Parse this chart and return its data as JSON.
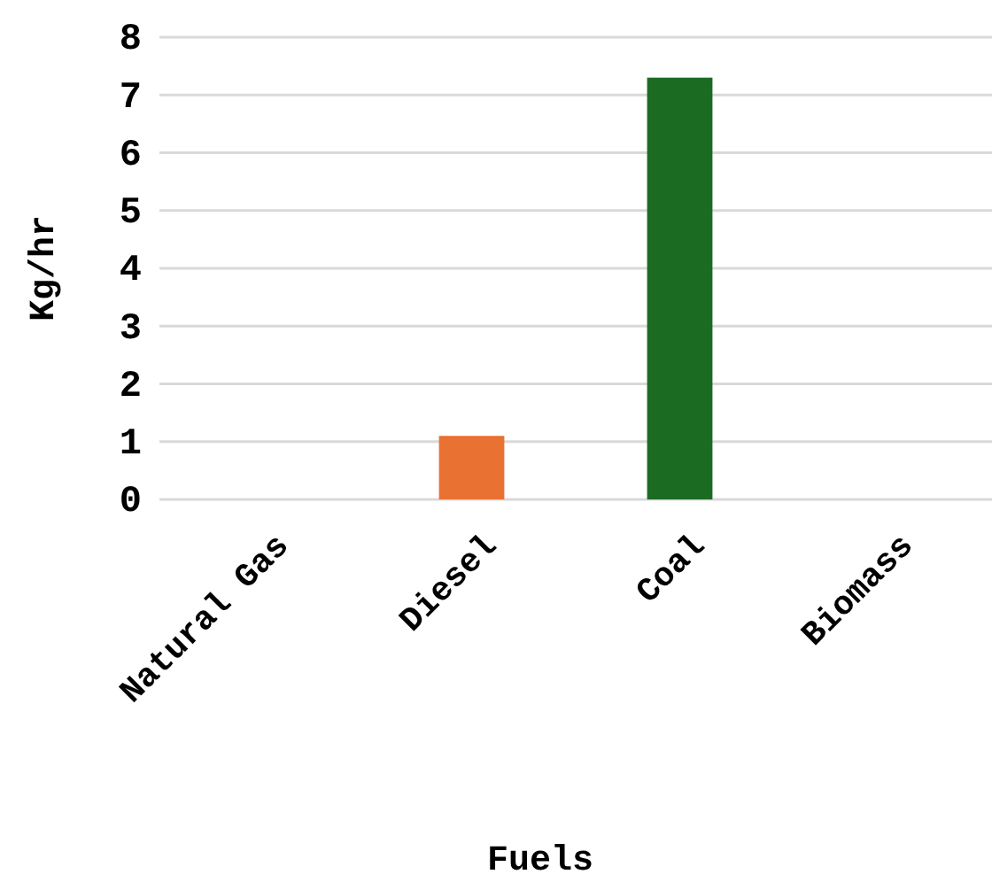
{
  "chart_data": {
    "type": "bar",
    "xlabel": "Fuels",
    "ylabel": "Kg/hr",
    "categories": [
      "Natural Gas",
      "Diesel",
      "Coal",
      "Biomass"
    ],
    "values": [
      0,
      1.1,
      7.3,
      0
    ],
    "colors": [
      "#4472c4",
      "#e97132",
      "#1b6b23",
      "#7f6000"
    ],
    "ylim": [
      0,
      8
    ],
    "yticks": [
      0,
      1,
      2,
      3,
      4,
      5,
      6,
      7,
      8
    ],
    "grid": "y"
  }
}
